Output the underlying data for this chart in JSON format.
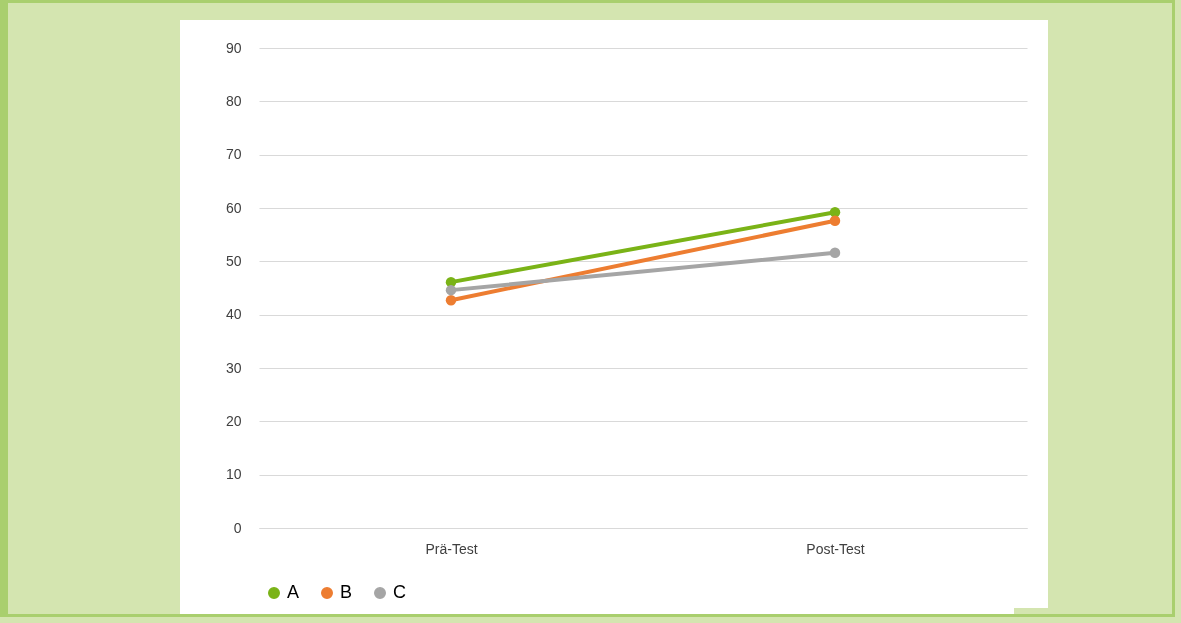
{
  "chart_data": {
    "type": "line",
    "categories": [
      "Prä-Test",
      "Post-Test"
    ],
    "series": [
      {
        "name": "A",
        "color": "#7ab317",
        "values": [
          46.1,
          59.2
        ]
      },
      {
        "name": "B",
        "color": "#ed7d31",
        "values": [
          42.7,
          57.6
        ]
      },
      {
        "name": "C",
        "color": "#a5a5a5",
        "values": [
          44.6,
          51.6
        ]
      }
    ],
    "ylim": [
      0,
      90
    ],
    "yticks": [
      0,
      10,
      20,
      30,
      40,
      50,
      60,
      70,
      80,
      90
    ],
    "grid": "y",
    "legend": "bottom",
    "marker": "circle",
    "line_style": "solid"
  }
}
